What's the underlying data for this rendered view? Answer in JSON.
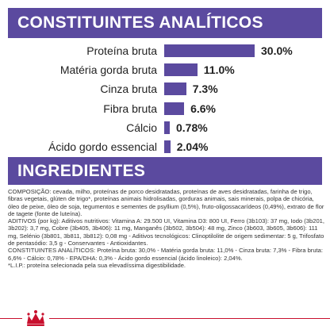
{
  "sections": {
    "analiticos_title": "CONSTITUINTES ANALÍTICOS",
    "ingredientes_title": "INGREDIENTES"
  },
  "colors": {
    "accent": "#5b4a9f",
    "brand_red": "#c8102e"
  },
  "chart_data": {
    "type": "bar",
    "orientation": "horizontal",
    "categories": [
      "Proteína bruta",
      "Matéria gorda bruta",
      "Cinza bruta",
      "Fibra bruta",
      "Cálcio",
      "Ácido gordo essencial"
    ],
    "values": [
      30.0,
      11.0,
      7.3,
      6.6,
      0.78,
      2.04
    ],
    "value_labels": [
      "30.0%",
      "11.0%",
      "7.3%",
      "6.6%",
      "0.78%",
      "2.04%"
    ],
    "unit": "%",
    "title": "CONSTITUINTES ANALÍTICOS",
    "grid": false,
    "legend": "none"
  },
  "ingredients": {
    "paragraphs": [
      "COMPOSIÇÃO: cevada, milho, proteínas de porco desidratadas, proteínas de aves desidratadas, farinha de trigo, fibras vegetais, glúten de trigo*, proteínas animais hidrolisadas, gorduras animais, sais minerais, polpa de chicória, óleo de peixe, óleo de soja, tegumentos e sementes de psyllium (0,5%), fruto-oligossacarídeos (0,49%), extrato de flor de tagete (fonte de luteína).",
      "ADITIVOS (por kg): Aditivos nutritivos: Vitamina A: 29.500 UI, Vitamina D3: 800 UI, Ferro (3b103): 37 mg, Iodo (3b201, 3b202): 3,7 mg, Cobre (3b405, 3b406): 11 mg, Manganês (3b502, 3b504): 48 mg, Zinco (3b603, 3b605, 3b606): 111 mg, Selénio (3b801, 3b811, 3b812): 0,08 mg - Aditivos tecnológicos: Clinoptilolite de origem sedimentar: 5 g, Trifosfato de pentasódio: 3,5 g - Conservantes - Antioxidantes.",
      "CONSTITUINTES ANALÍTICOS: Proteína bruta: 30,0% - Matéria gorda bruta: 11,0% - Cinza bruta: 7,3% - Fibra bruta: 6,6% - Cálcio: 0,78% - EPA/DHA: 0,3% - Ácido gordo essencial (ácido linoleico): 2,04%.",
      "*L.I.P.: proteína selecionada pela sua elevadíssima digestibilidade."
    ]
  },
  "footer": {
    "logo_icon": "royal-canin-crown-icon"
  }
}
